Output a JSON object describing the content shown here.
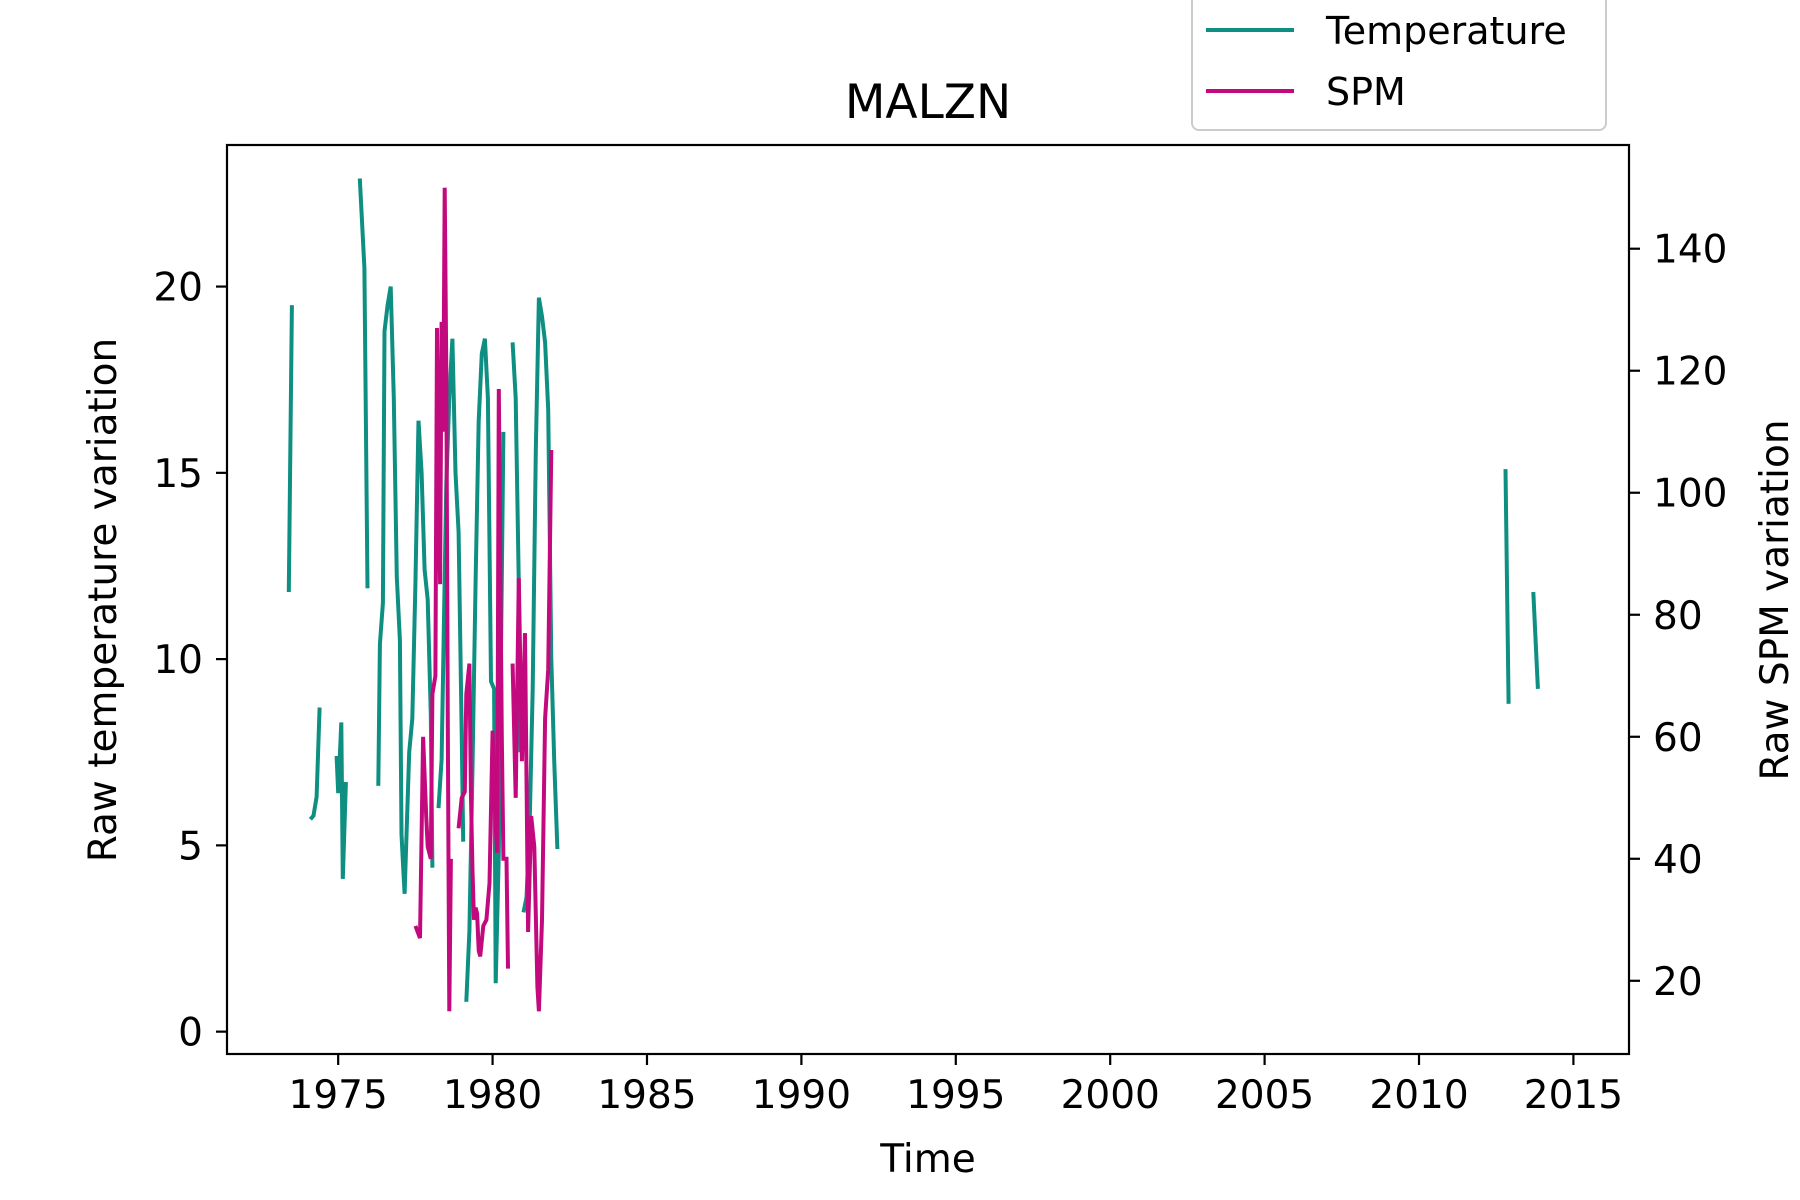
{
  "chart_data": {
    "type": "line",
    "title": "MALZN",
    "xlabel": "Time",
    "ylabel": "Raw temperature variation",
    "y2label": "Raw SPM variation",
    "xlim": [
      1971.4,
      2016.8
    ],
    "ylim": [
      -0.6,
      23.8
    ],
    "y2lim": [
      8,
      157
    ],
    "xticks": [
      1975,
      1980,
      1985,
      1990,
      1995,
      2000,
      2005,
      2010,
      2015
    ],
    "yticks": [
      0,
      5,
      10,
      15,
      20
    ],
    "y2ticks": [
      20,
      40,
      60,
      80,
      100,
      120,
      140
    ],
    "grid": false,
    "legend_position": "top-right, above plot",
    "colors": {
      "Temperature": "#0e8f82",
      "SPM": "#c20a7e"
    },
    "series": [
      {
        "name": "Temperature",
        "axis": "left",
        "segments": [
          [
            [
              1973.4,
              11.8
            ],
            [
              1973.5,
              19.5
            ]
          ],
          [
            [
              1974.1,
              5.7
            ],
            [
              1974.2,
              5.8
            ],
            [
              1974.3,
              6.3
            ],
            [
              1974.4,
              8.7
            ]
          ],
          [
            [
              1974.95,
              7.4
            ],
            [
              1975.0,
              6.4
            ],
            [
              1975.1,
              8.3
            ],
            [
              1975.15,
              4.1
            ],
            [
              1975.25,
              6.7
            ]
          ],
          [
            [
              1975.7,
              22.9
            ],
            [
              1975.85,
              20.5
            ],
            [
              1975.95,
              11.9
            ]
          ],
          [
            [
              1976.3,
              6.6
            ],
            [
              1976.35,
              10.4
            ],
            [
              1976.45,
              11.5
            ],
            [
              1976.5,
              18.8
            ],
            [
              1976.6,
              19.5
            ],
            [
              1976.7,
              20.0
            ],
            [
              1976.8,
              17.0
            ],
            [
              1976.9,
              12.2
            ],
            [
              1977.0,
              10.5
            ],
            [
              1977.05,
              5.3
            ],
            [
              1977.1,
              4.5
            ],
            [
              1977.15,
              3.7
            ],
            [
              1977.3,
              7.5
            ],
            [
              1977.4,
              8.4
            ],
            [
              1977.5,
              12.0
            ],
            [
              1977.6,
              16.4
            ],
            [
              1977.7,
              15.0
            ],
            [
              1977.8,
              12.4
            ],
            [
              1977.9,
              11.6
            ],
            [
              1978.0,
              8.5
            ],
            [
              1978.05,
              4.4
            ]
          ],
          [
            [
              1978.25,
              6.0
            ],
            [
              1978.35,
              7.3
            ],
            [
              1978.5,
              14.7
            ],
            [
              1978.6,
              17.0
            ],
            [
              1978.7,
              18.6
            ],
            [
              1978.8,
              15.0
            ],
            [
              1978.9,
              13.4
            ],
            [
              1979.0,
              8.0
            ],
            [
              1979.05,
              5.1
            ]
          ],
          [
            [
              1979.15,
              0.8
            ],
            [
              1979.25,
              2.7
            ],
            [
              1979.35,
              7.1
            ],
            [
              1979.45,
              12.1
            ],
            [
              1979.55,
              16.4
            ],
            [
              1979.65,
              18.2
            ],
            [
              1979.75,
              18.6
            ],
            [
              1979.85,
              17.0
            ],
            [
              1979.95,
              9.4
            ],
            [
              1980.05,
              9.2
            ],
            [
              1980.1,
              1.3
            ],
            [
              1980.2,
              4.8
            ],
            [
              1980.35,
              16.1
            ]
          ],
          [
            [
              1980.65,
              18.5
            ],
            [
              1980.75,
              17.0
            ],
            [
              1980.85,
              12.0
            ],
            [
              1980.9,
              7.5
            ]
          ],
          [
            [
              1981.0,
              3.2
            ],
            [
              1981.1,
              3.6
            ],
            [
              1981.2,
              5.5
            ],
            [
              1981.3,
              9.2
            ],
            [
              1981.4,
              15.6
            ],
            [
              1981.5,
              19.7
            ],
            [
              1981.6,
              19.2
            ],
            [
              1981.7,
              18.5
            ],
            [
              1981.8,
              16.7
            ],
            [
              1981.9,
              10.0
            ],
            [
              1982.0,
              7.2
            ],
            [
              1982.1,
              4.9
            ]
          ],
          [
            [
              2012.8,
              15.1
            ],
            [
              2012.9,
              8.8
            ]
          ],
          [
            [
              2013.7,
              11.8
            ],
            [
              2013.85,
              9.2
            ]
          ]
        ]
      },
      {
        "name": "SPM",
        "axis": "right",
        "segments": [
          [
            [
              1977.5,
              29
            ],
            [
              1977.65,
              27
            ],
            [
              1977.75,
              60
            ],
            [
              1977.85,
              47
            ],
            [
              1977.9,
              42
            ],
            [
              1978.0,
              40
            ],
            [
              1978.05,
              67
            ],
            [
              1978.15,
              70
            ],
            [
              1978.2,
              127
            ],
            [
              1978.25,
              105
            ],
            [
              1978.3,
              85
            ],
            [
              1978.35,
              128
            ],
            [
              1978.4,
              110
            ],
            [
              1978.45,
              150
            ],
            [
              1978.5,
              120
            ],
            [
              1978.55,
              62
            ],
            [
              1978.6,
              15
            ],
            [
              1978.65,
              40
            ]
          ],
          [
            [
              1978.9,
              45
            ],
            [
              1979.0,
              50
            ],
            [
              1979.1,
              51
            ],
            [
              1979.15,
              67
            ],
            [
              1979.25,
              72
            ],
            [
              1979.3,
              50
            ],
            [
              1979.35,
              38
            ],
            [
              1979.4,
              30
            ],
            [
              1979.45,
              32
            ],
            [
              1979.5,
              31
            ],
            [
              1979.55,
              25
            ],
            [
              1979.6,
              24
            ],
            [
              1979.7,
              29
            ],
            [
              1979.8,
              30
            ],
            [
              1979.9,
              36
            ],
            [
              1980.0,
              61
            ],
            [
              1980.1,
              45
            ],
            [
              1980.15,
              41
            ],
            [
              1980.2,
              117
            ],
            [
              1980.3,
              60
            ],
            [
              1980.35,
              40
            ],
            [
              1980.45,
              40
            ],
            [
              1980.5,
              22
            ]
          ],
          [
            [
              1980.65,
              72
            ],
            [
              1980.75,
              50
            ],
            [
              1980.85,
              86
            ],
            [
              1980.95,
              56
            ],
            [
              1981.05,
              77
            ],
            [
              1981.15,
              28
            ],
            [
              1981.25,
              47
            ],
            [
              1981.35,
              42
            ],
            [
              1981.45,
              19
            ],
            [
              1981.5,
              15
            ],
            [
              1981.6,
              30
            ],
            [
              1981.7,
              63
            ],
            [
              1981.8,
              71
            ],
            [
              1981.9,
              107
            ]
          ]
        ]
      }
    ]
  }
}
